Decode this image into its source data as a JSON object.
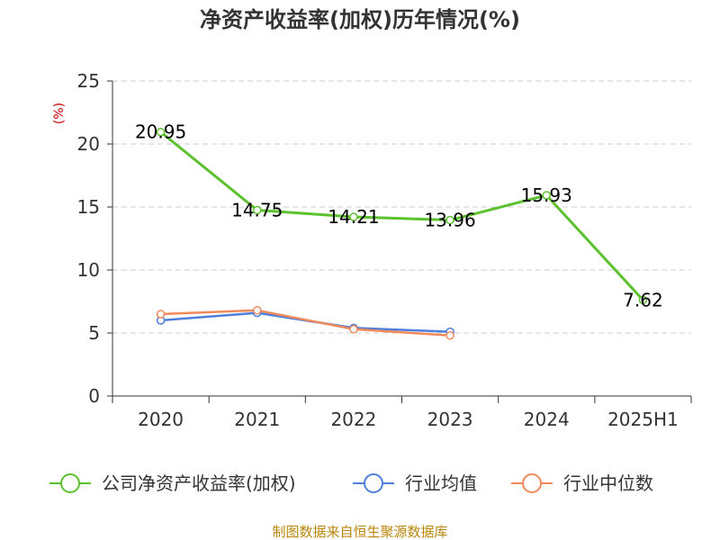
{
  "title": "净资产收益率(加权)历年情况(%)",
  "source": "制图数据来自恒生聚源数据库",
  "chart_data": {
    "type": "line",
    "title": "净资产收益率(加权)历年情况(%)",
    "ylabel": "(%)",
    "ylim": [
      0,
      25
    ],
    "yticks": [
      0,
      5,
      10,
      15,
      20,
      25
    ],
    "grid": true,
    "legend_position": "bottom",
    "categories": [
      "2020",
      "2021",
      "2022",
      "2023",
      "2024",
      "2025H1"
    ],
    "series": [
      {
        "name": "公司净资产收益率(加权)",
        "color": "#5cc12e",
        "values": [
          20.95,
          14.75,
          14.21,
          13.96,
          15.93,
          7.62
        ],
        "labels": [
          "20.95",
          "14.75",
          "14.21",
          "13.96",
          "15.93",
          "7.62"
        ]
      },
      {
        "name": "行业均值",
        "color": "#4e7fdb",
        "values": [
          6.0,
          6.6,
          5.4,
          5.1,
          null,
          null
        ]
      },
      {
        "name": "行业中位数",
        "color": "#f2895a",
        "values": [
          6.5,
          6.8,
          5.3,
          4.8,
          null,
          null
        ]
      }
    ]
  }
}
